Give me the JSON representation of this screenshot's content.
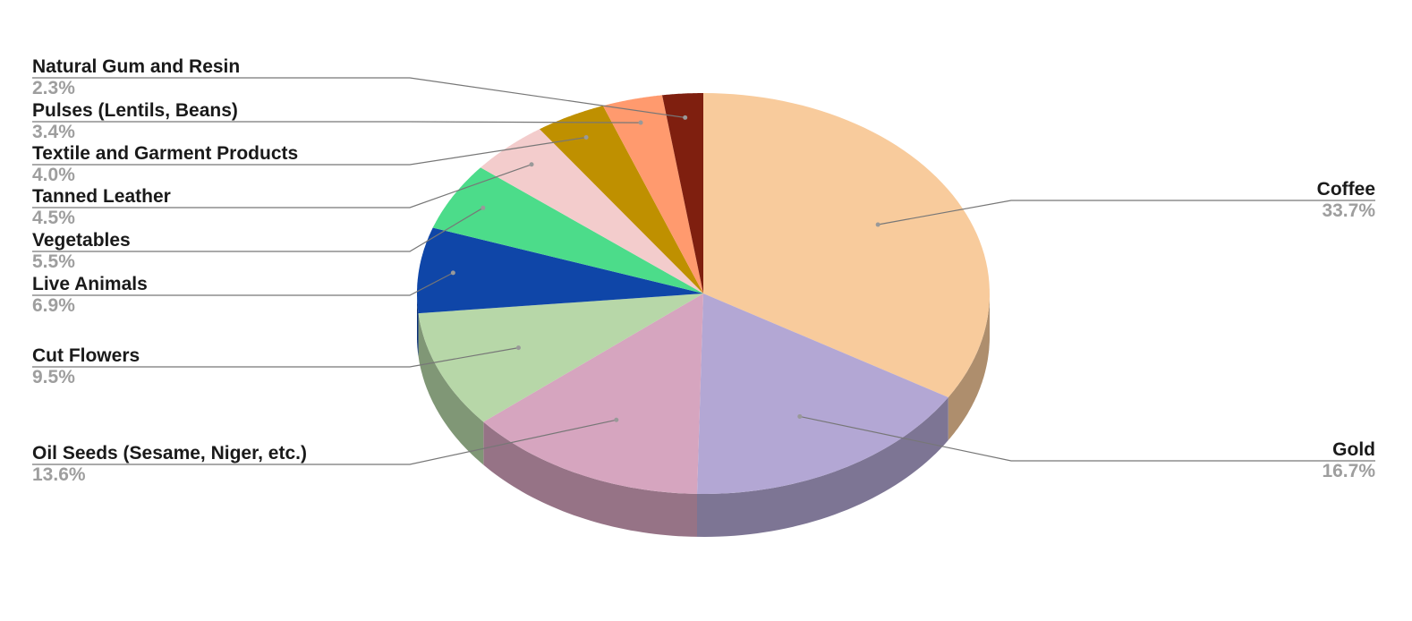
{
  "chart_data": {
    "type": "pie",
    "style": "3d",
    "start_angle": "12 o'clock, clockwise",
    "title": "",
    "slices": [
      {
        "label": "Coffee",
        "value": 33.7,
        "pct": "33.7%",
        "color": "#f8cb9c",
        "side": "right"
      },
      {
        "label": "Gold",
        "value": 16.7,
        "pct": "16.7%",
        "color": "#b3a7d4",
        "side": "right"
      },
      {
        "label": "Oil Seeds (Sesame, Niger, etc.)",
        "value": 13.6,
        "pct": "13.6%",
        "color": "#d6a5bf",
        "side": "left"
      },
      {
        "label": "Cut Flowers",
        "value": 9.5,
        "pct": "9.5%",
        "color": "#b7d7a8",
        "side": "left"
      },
      {
        "label": "Live Animals",
        "value": 6.9,
        "pct": "6.9%",
        "color": "#0f46a8",
        "side": "left"
      },
      {
        "label": "Vegetables",
        "value": 5.5,
        "pct": "5.5%",
        "color": "#4cdc8a",
        "side": "left"
      },
      {
        "label": "Tanned Leather",
        "value": 4.5,
        "pct": "4.5%",
        "color": "#f3cccc",
        "side": "left"
      },
      {
        "label": "Textile and Garment Products",
        "value": 4.0,
        "pct": "4.0%",
        "color": "#bf9000",
        "side": "left"
      },
      {
        "label": "Pulses (Lentils, Beans)",
        "value": 3.4,
        "pct": "3.4%",
        "color": "#ff9a6e",
        "side": "left"
      },
      {
        "label": "Natural Gum and Resin",
        "value": 2.3,
        "pct": "2.3%",
        "color": "#7f1f0f",
        "side": "left"
      }
    ]
  }
}
